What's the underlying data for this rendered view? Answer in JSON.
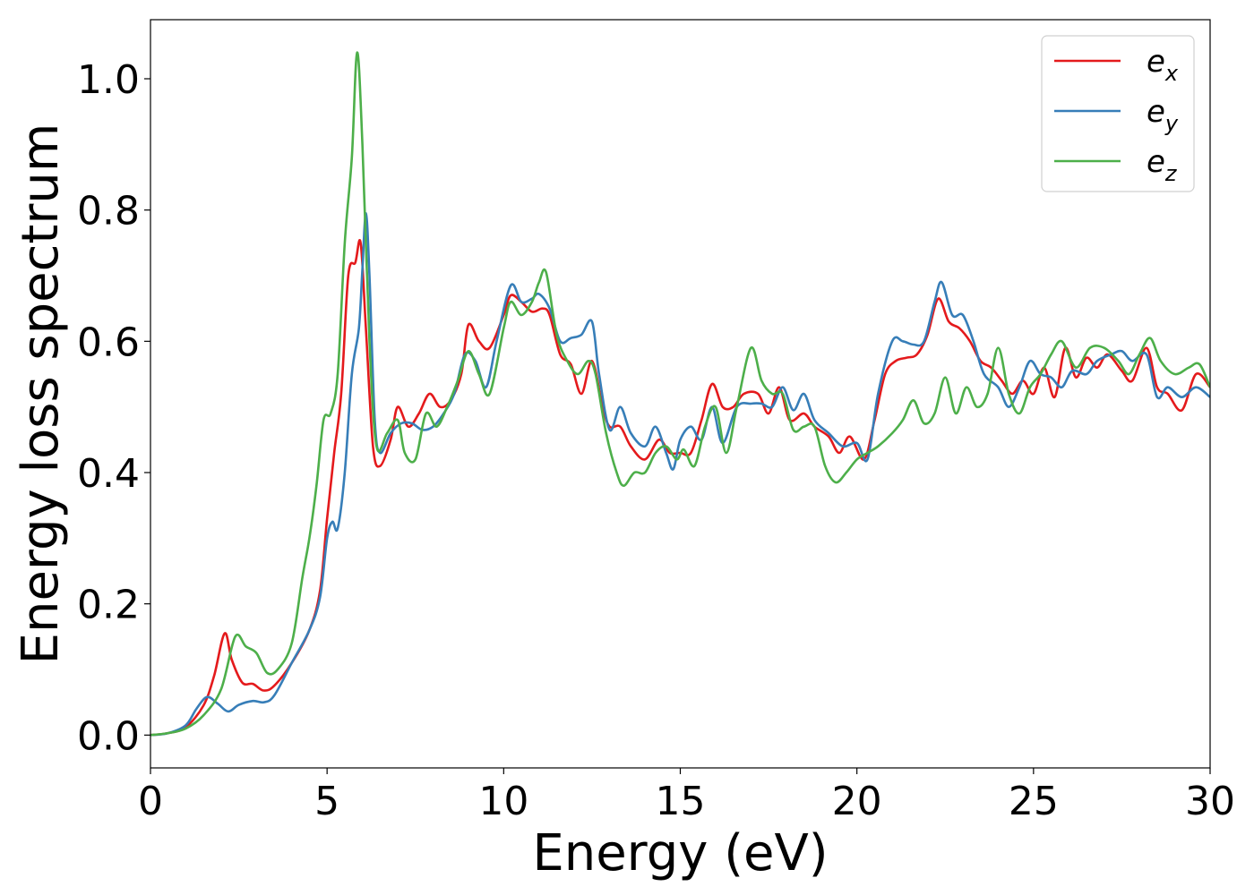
{
  "chart_data": {
    "type": "line",
    "xlabel": "Energy (eV)",
    "ylabel": "Energy loss spectrum",
    "xlim": [
      0,
      30
    ],
    "ylim": [
      -0.05,
      1.09
    ],
    "xticks": [
      0,
      5,
      10,
      15,
      20,
      25,
      30
    ],
    "yticks": [
      0.0,
      0.2,
      0.4,
      0.6,
      0.8,
      1.0
    ],
    "xtick_labels": [
      "0",
      "5",
      "10",
      "15",
      "20",
      "25",
      "30"
    ],
    "ytick_labels": [
      "0.0",
      "0.2",
      "0.4",
      "0.6",
      "0.8",
      "1.0"
    ],
    "grid": false,
    "legend_position": "top-right",
    "series": [
      {
        "name": "e_x",
        "legend_main": "e",
        "legend_sub": "x",
        "color": "#e41a1c",
        "points": [
          [
            0,
            0
          ],
          [
            0.5,
            0.003
          ],
          [
            1.0,
            0.012
          ],
          [
            1.5,
            0.045
          ],
          [
            1.8,
            0.09
          ],
          [
            2.1,
            0.155
          ],
          [
            2.3,
            0.115
          ],
          [
            2.6,
            0.08
          ],
          [
            2.9,
            0.078
          ],
          [
            3.2,
            0.068
          ],
          [
            3.5,
            0.075
          ],
          [
            4.0,
            0.11
          ],
          [
            4.5,
            0.16
          ],
          [
            4.8,
            0.22
          ],
          [
            5.0,
            0.33
          ],
          [
            5.2,
            0.43
          ],
          [
            5.4,
            0.52
          ],
          [
            5.6,
            0.7
          ],
          [
            5.8,
            0.72
          ],
          [
            5.95,
            0.75
          ],
          [
            6.1,
            0.62
          ],
          [
            6.3,
            0.44
          ],
          [
            6.5,
            0.41
          ],
          [
            6.8,
            0.45
          ],
          [
            7.0,
            0.5
          ],
          [
            7.3,
            0.47
          ],
          [
            7.6,
            0.49
          ],
          [
            7.9,
            0.52
          ],
          [
            8.2,
            0.5
          ],
          [
            8.5,
            0.51
          ],
          [
            8.8,
            0.55
          ],
          [
            9.0,
            0.625
          ],
          [
            9.3,
            0.6
          ],
          [
            9.6,
            0.59
          ],
          [
            10.0,
            0.64
          ],
          [
            10.2,
            0.67
          ],
          [
            10.5,
            0.66
          ],
          [
            10.8,
            0.645
          ],
          [
            11.1,
            0.65
          ],
          [
            11.3,
            0.64
          ],
          [
            11.6,
            0.58
          ],
          [
            11.9,
            0.565
          ],
          [
            12.2,
            0.52
          ],
          [
            12.5,
            0.57
          ],
          [
            12.8,
            0.5
          ],
          [
            13.0,
            0.47
          ],
          [
            13.3,
            0.47
          ],
          [
            13.6,
            0.44
          ],
          [
            14.0,
            0.42
          ],
          [
            14.4,
            0.45
          ],
          [
            14.7,
            0.43
          ],
          [
            15.0,
            0.43
          ],
          [
            15.3,
            0.43
          ],
          [
            15.6,
            0.48
          ],
          [
            15.9,
            0.535
          ],
          [
            16.2,
            0.5
          ],
          [
            16.5,
            0.5
          ],
          [
            16.8,
            0.52
          ],
          [
            17.2,
            0.52
          ],
          [
            17.5,
            0.49
          ],
          [
            17.8,
            0.53
          ],
          [
            18.1,
            0.48
          ],
          [
            18.5,
            0.49
          ],
          [
            18.8,
            0.47
          ],
          [
            19.2,
            0.455
          ],
          [
            19.5,
            0.43
          ],
          [
            19.8,
            0.455
          ],
          [
            20.2,
            0.42
          ],
          [
            20.5,
            0.48
          ],
          [
            20.8,
            0.55
          ],
          [
            21.1,
            0.57
          ],
          [
            21.4,
            0.575
          ],
          [
            21.7,
            0.58
          ],
          [
            22.0,
            0.61
          ],
          [
            22.3,
            0.665
          ],
          [
            22.6,
            0.63
          ],
          [
            22.9,
            0.62
          ],
          [
            23.2,
            0.6
          ],
          [
            23.5,
            0.57
          ],
          [
            23.8,
            0.56
          ],
          [
            24.1,
            0.54
          ],
          [
            24.4,
            0.52
          ],
          [
            24.7,
            0.54
          ],
          [
            25.0,
            0.52
          ],
          [
            25.3,
            0.56
          ],
          [
            25.6,
            0.515
          ],
          [
            25.9,
            0.59
          ],
          [
            26.2,
            0.545
          ],
          [
            26.5,
            0.575
          ],
          [
            26.8,
            0.56
          ],
          [
            27.1,
            0.58
          ],
          [
            27.5,
            0.555
          ],
          [
            27.8,
            0.54
          ],
          [
            28.2,
            0.59
          ],
          [
            28.5,
            0.53
          ],
          [
            28.8,
            0.52
          ],
          [
            29.2,
            0.495
          ],
          [
            29.6,
            0.55
          ],
          [
            30.0,
            0.53
          ]
        ]
      },
      {
        "name": "e_y",
        "legend_main": "e",
        "legend_sub": "y",
        "color": "#377eb8",
        "points": [
          [
            0,
            0
          ],
          [
            0.5,
            0.003
          ],
          [
            1.0,
            0.015
          ],
          [
            1.3,
            0.04
          ],
          [
            1.6,
            0.058
          ],
          [
            1.9,
            0.048
          ],
          [
            2.2,
            0.036
          ],
          [
            2.5,
            0.046
          ],
          [
            2.9,
            0.052
          ],
          [
            3.2,
            0.05
          ],
          [
            3.5,
            0.06
          ],
          [
            4.0,
            0.11
          ],
          [
            4.5,
            0.16
          ],
          [
            4.8,
            0.21
          ],
          [
            5.0,
            0.3
          ],
          [
            5.15,
            0.325
          ],
          [
            5.3,
            0.315
          ],
          [
            5.5,
            0.4
          ],
          [
            5.7,
            0.55
          ],
          [
            5.9,
            0.62
          ],
          [
            6.0,
            0.71
          ],
          [
            6.1,
            0.795
          ],
          [
            6.2,
            0.7
          ],
          [
            6.35,
            0.48
          ],
          [
            6.5,
            0.43
          ],
          [
            6.8,
            0.46
          ],
          [
            7.1,
            0.475
          ],
          [
            7.4,
            0.475
          ],
          [
            7.7,
            0.465
          ],
          [
            8.0,
            0.47
          ],
          [
            8.3,
            0.49
          ],
          [
            8.6,
            0.52
          ],
          [
            8.9,
            0.58
          ],
          [
            9.2,
            0.57
          ],
          [
            9.5,
            0.53
          ],
          [
            9.8,
            0.6
          ],
          [
            10.2,
            0.685
          ],
          [
            10.5,
            0.66
          ],
          [
            10.8,
            0.665
          ],
          [
            11.0,
            0.672
          ],
          [
            11.3,
            0.65
          ],
          [
            11.6,
            0.6
          ],
          [
            11.9,
            0.605
          ],
          [
            12.2,
            0.61
          ],
          [
            12.5,
            0.63
          ],
          [
            12.7,
            0.55
          ],
          [
            13.0,
            0.465
          ],
          [
            13.3,
            0.5
          ],
          [
            13.6,
            0.46
          ],
          [
            14.0,
            0.44
          ],
          [
            14.3,
            0.47
          ],
          [
            14.6,
            0.43
          ],
          [
            14.8,
            0.405
          ],
          [
            15.0,
            0.45
          ],
          [
            15.3,
            0.47
          ],
          [
            15.6,
            0.45
          ],
          [
            15.9,
            0.5
          ],
          [
            16.2,
            0.445
          ],
          [
            16.6,
            0.5
          ],
          [
            17.0,
            0.505
          ],
          [
            17.3,
            0.505
          ],
          [
            17.6,
            0.5
          ],
          [
            17.9,
            0.53
          ],
          [
            18.2,
            0.495
          ],
          [
            18.5,
            0.52
          ],
          [
            18.8,
            0.48
          ],
          [
            19.2,
            0.46
          ],
          [
            19.6,
            0.44
          ],
          [
            20.0,
            0.445
          ],
          [
            20.3,
            0.42
          ],
          [
            20.6,
            0.52
          ],
          [
            21.0,
            0.6
          ],
          [
            21.3,
            0.6
          ],
          [
            21.6,
            0.595
          ],
          [
            21.9,
            0.6
          ],
          [
            22.2,
            0.66
          ],
          [
            22.4,
            0.69
          ],
          [
            22.7,
            0.64
          ],
          [
            23.0,
            0.64
          ],
          [
            23.3,
            0.6
          ],
          [
            23.6,
            0.55
          ],
          [
            24.0,
            0.53
          ],
          [
            24.3,
            0.5
          ],
          [
            24.6,
            0.53
          ],
          [
            24.9,
            0.57
          ],
          [
            25.2,
            0.55
          ],
          [
            25.5,
            0.545
          ],
          [
            25.8,
            0.53
          ],
          [
            26.1,
            0.555
          ],
          [
            26.5,
            0.55
          ],
          [
            26.8,
            0.57
          ],
          [
            27.2,
            0.58
          ],
          [
            27.5,
            0.585
          ],
          [
            27.8,
            0.57
          ],
          [
            28.2,
            0.58
          ],
          [
            28.5,
            0.515
          ],
          [
            28.8,
            0.53
          ],
          [
            29.2,
            0.515
          ],
          [
            29.6,
            0.53
          ],
          [
            30.0,
            0.515
          ]
        ]
      },
      {
        "name": "e_z",
        "legend_main": "e",
        "legend_sub": "z",
        "color": "#4daf4a",
        "points": [
          [
            0,
            0
          ],
          [
            0.5,
            0.003
          ],
          [
            1.0,
            0.01
          ],
          [
            1.5,
            0.03
          ],
          [
            2.0,
            0.07
          ],
          [
            2.4,
            0.15
          ],
          [
            2.7,
            0.135
          ],
          [
            3.0,
            0.125
          ],
          [
            3.3,
            0.095
          ],
          [
            3.6,
            0.1
          ],
          [
            4.0,
            0.14
          ],
          [
            4.3,
            0.24
          ],
          [
            4.5,
            0.3
          ],
          [
            4.7,
            0.38
          ],
          [
            4.9,
            0.48
          ],
          [
            5.1,
            0.49
          ],
          [
            5.3,
            0.55
          ],
          [
            5.5,
            0.75
          ],
          [
            5.7,
            0.88
          ],
          [
            5.85,
            1.04
          ],
          [
            6.0,
            0.9
          ],
          [
            6.2,
            0.6
          ],
          [
            6.4,
            0.44
          ],
          [
            6.7,
            0.46
          ],
          [
            7.0,
            0.48
          ],
          [
            7.2,
            0.43
          ],
          [
            7.5,
            0.42
          ],
          [
            7.8,
            0.49
          ],
          [
            8.1,
            0.47
          ],
          [
            8.4,
            0.5
          ],
          [
            8.7,
            0.54
          ],
          [
            9.0,
            0.585
          ],
          [
            9.3,
            0.55
          ],
          [
            9.6,
            0.52
          ],
          [
            10.0,
            0.62
          ],
          [
            10.2,
            0.66
          ],
          [
            10.5,
            0.64
          ],
          [
            10.8,
            0.66
          ],
          [
            11.0,
            0.69
          ],
          [
            11.2,
            0.705
          ],
          [
            11.5,
            0.61
          ],
          [
            11.8,
            0.57
          ],
          [
            12.1,
            0.55
          ],
          [
            12.4,
            0.57
          ],
          [
            12.6,
            0.55
          ],
          [
            12.9,
            0.46
          ],
          [
            13.2,
            0.4
          ],
          [
            13.4,
            0.38
          ],
          [
            13.7,
            0.4
          ],
          [
            14.0,
            0.4
          ],
          [
            14.3,
            0.43
          ],
          [
            14.6,
            0.44
          ],
          [
            14.9,
            0.42
          ],
          [
            15.1,
            0.435
          ],
          [
            15.4,
            0.41
          ],
          [
            15.7,
            0.47
          ],
          [
            16.0,
            0.5
          ],
          [
            16.3,
            0.43
          ],
          [
            16.6,
            0.5
          ],
          [
            17.0,
            0.59
          ],
          [
            17.3,
            0.54
          ],
          [
            17.6,
            0.52
          ],
          [
            17.9,
            0.52
          ],
          [
            18.2,
            0.465
          ],
          [
            18.5,
            0.47
          ],
          [
            18.8,
            0.47
          ],
          [
            19.1,
            0.41
          ],
          [
            19.4,
            0.385
          ],
          [
            19.7,
            0.4
          ],
          [
            20.0,
            0.42
          ],
          [
            20.3,
            0.43
          ],
          [
            20.6,
            0.44
          ],
          [
            21.0,
            0.46
          ],
          [
            21.3,
            0.48
          ],
          [
            21.6,
            0.51
          ],
          [
            21.9,
            0.475
          ],
          [
            22.2,
            0.49
          ],
          [
            22.5,
            0.545
          ],
          [
            22.8,
            0.49
          ],
          [
            23.1,
            0.53
          ],
          [
            23.4,
            0.5
          ],
          [
            23.7,
            0.52
          ],
          [
            24.0,
            0.59
          ],
          [
            24.3,
            0.52
          ],
          [
            24.6,
            0.49
          ],
          [
            24.9,
            0.53
          ],
          [
            25.2,
            0.55
          ],
          [
            25.5,
            0.58
          ],
          [
            25.8,
            0.6
          ],
          [
            26.2,
            0.56
          ],
          [
            26.6,
            0.59
          ],
          [
            27.0,
            0.59
          ],
          [
            27.4,
            0.57
          ],
          [
            27.7,
            0.55
          ],
          [
            28.0,
            0.58
          ],
          [
            28.3,
            0.605
          ],
          [
            28.6,
            0.57
          ],
          [
            29.0,
            0.55
          ],
          [
            29.4,
            0.56
          ],
          [
            29.7,
            0.565
          ],
          [
            30.0,
            0.53
          ]
        ]
      }
    ]
  }
}
